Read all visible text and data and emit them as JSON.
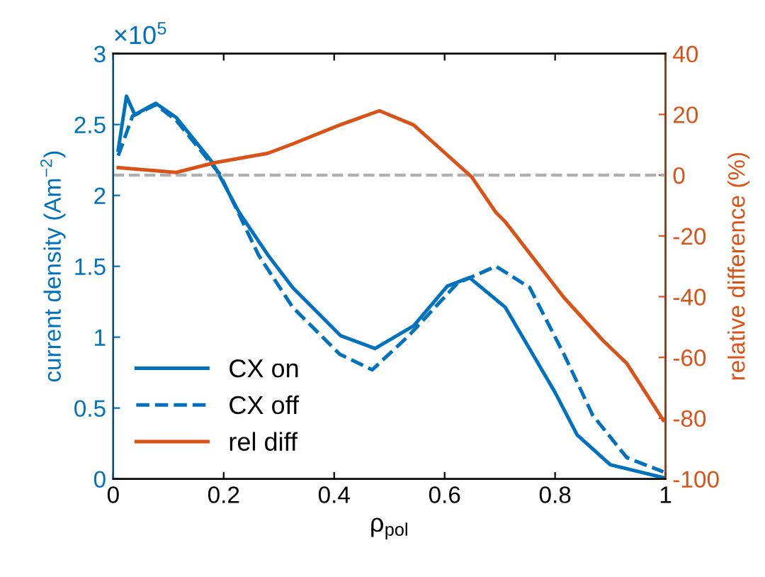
{
  "chart_data": {
    "type": "line",
    "xlabel": "ρ$_{pol}$",
    "ylabel": "current density (Am$^{−2}$)",
    "y2label": "relative difference (%)",
    "annotations": [
      "×10$^{5}$"
    ],
    "xlim": [
      0,
      1
    ],
    "xticks": [
      0,
      0.2,
      0.4,
      0.6,
      0.8,
      1
    ],
    "ylim": [
      0,
      3
    ],
    "yticks": [
      0,
      0.5,
      1,
      1.5,
      2,
      2.5,
      3
    ],
    "y2lim": [
      -100,
      40
    ],
    "y2ticks": [
      -100,
      -80,
      -60,
      -40,
      -20,
      0,
      20,
      40
    ],
    "legend": "bottom left",
    "grid": false,
    "marker": "none",
    "ref_lines": [
      {
        "axis": "y2",
        "value": 0,
        "color": "#b0b0b0",
        "line_style": "dashed"
      }
    ],
    "series": [
      {
        "name": "CX on",
        "color": "#0072bd",
        "line_style": "solid",
        "x": [
          0.009,
          0.024,
          0.039,
          0.077,
          0.114,
          0.18,
          0.228,
          0.28,
          0.325,
          0.412,
          0.474,
          0.544,
          0.605,
          0.645,
          0.71,
          0.8,
          0.84,
          0.9,
          0.995
        ],
        "values": [
          2.32,
          2.7,
          2.57,
          2.65,
          2.55,
          2.23,
          1.88,
          1.58,
          1.35,
          1.01,
          0.92,
          1.08,
          1.36,
          1.42,
          1.21,
          0.61,
          0.31,
          0.1,
          0.01
        ]
      },
      {
        "name": "CX off",
        "color": "#0072bd",
        "line_style": "dashed",
        "x": [
          0.009,
          0.035,
          0.077,
          0.114,
          0.193,
          0.263,
          0.325,
          0.41,
          0.469,
          0.535,
          0.623,
          0.693,
          0.754,
          0.816,
          0.868,
          0.93,
          0.996
        ],
        "values": [
          2.28,
          2.56,
          2.64,
          2.53,
          2.15,
          1.58,
          1.21,
          0.88,
          0.77,
          1.01,
          1.38,
          1.5,
          1.35,
          0.88,
          0.45,
          0.15,
          0.05
        ]
      },
      {
        "name": "rel diff",
        "color": "#d95319",
        "line_style": "solid",
        "axis": "y2",
        "x": [
          0.009,
          0.114,
          0.184,
          0.28,
          0.325,
          0.41,
          0.482,
          0.544,
          0.597,
          0.649,
          0.693,
          0.71,
          0.816,
          0.886,
          0.93,
          0.996
        ],
        "values": [
          2.5,
          0.9,
          4.1,
          7.2,
          10.3,
          16.5,
          21.2,
          16.5,
          7.9,
          -0.6,
          -12.3,
          -15.4,
          -40.3,
          -54.3,
          -62,
          -80.7
        ]
      }
    ]
  }
}
